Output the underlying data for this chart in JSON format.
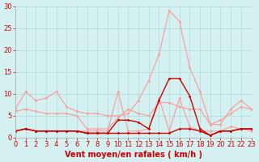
{
  "x": [
    0,
    1,
    2,
    3,
    4,
    5,
    6,
    7,
    8,
    9,
    10,
    11,
    12,
    13,
    14,
    15,
    16,
    17,
    18,
    19,
    20,
    21,
    22,
    23
  ],
  "series_light1": [
    6.5,
    10.5,
    8.5,
    9.0,
    10.5,
    7.0,
    6.0,
    5.5,
    5.5,
    5.0,
    5.0,
    5.5,
    8.5,
    13.0,
    19.0,
    29.0,
    26.5,
    16.0,
    10.5,
    3.0,
    3.0,
    6.5,
    8.5,
    6.5
  ],
  "series_light2": [
    6.0,
    6.5,
    6.0,
    5.5,
    5.5,
    5.5,
    5.0,
    2.0,
    2.0,
    2.0,
    4.5,
    6.5,
    5.5,
    5.0,
    8.0,
    8.0,
    7.0,
    6.5,
    6.5,
    3.0,
    4.0,
    5.5,
    7.0,
    6.5
  ],
  "series_light3": [
    1.5,
    2.0,
    1.5,
    1.5,
    1.5,
    1.5,
    1.5,
    1.5,
    1.5,
    1.5,
    10.5,
    1.5,
    1.5,
    2.0,
    9.0,
    1.5,
    9.0,
    2.5,
    1.5,
    1.5,
    1.5,
    2.5,
    2.0,
    1.5
  ],
  "series_dark1": [
    1.5,
    2.0,
    1.5,
    1.5,
    1.5,
    1.5,
    1.5,
    1.0,
    1.0,
    1.0,
    4.0,
    4.0,
    3.5,
    2.0,
    8.5,
    13.5,
    13.5,
    9.5,
    2.0,
    0.5,
    1.5,
    1.5,
    2.0,
    2.0
  ],
  "series_dark2": [
    1.5,
    2.0,
    1.5,
    1.5,
    1.5,
    1.5,
    1.5,
    1.0,
    1.0,
    1.0,
    1.0,
    1.0,
    1.0,
    1.0,
    1.0,
    1.0,
    2.0,
    2.0,
    1.5,
    0.5,
    1.5,
    1.5,
    2.0,
    2.0
  ],
  "color_light": "#ff9999",
  "color_dark": "#cc0000",
  "background": "#d4f0f0",
  "grid_color": "#aadddd",
  "xlabel": "Vent moyen/en rafales ( km/h )",
  "ylabel": "",
  "ylim": [
    0,
    30
  ],
  "xlim": [
    0,
    23
  ],
  "yticks": [
    0,
    5,
    10,
    15,
    20,
    25,
    30
  ],
  "xticks": [
    0,
    1,
    2,
    3,
    4,
    5,
    6,
    7,
    8,
    9,
    10,
    11,
    12,
    13,
    14,
    15,
    16,
    17,
    18,
    19,
    20,
    21,
    22,
    23
  ],
  "title_fontsize": 8,
  "label_fontsize": 7,
  "tick_fontsize": 6
}
